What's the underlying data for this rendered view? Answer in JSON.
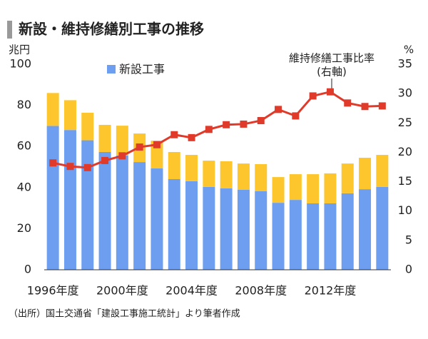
{
  "chart_data": {
    "type": "stacked-bar-line",
    "title": "新設・維持修繕別工事の推移",
    "y_label": "兆円",
    "y2_label": "%",
    "annotation": [
      "維持修繕工事比率",
      "(右軸)"
    ],
    "source": "（出所）国土交通省「建設工事施工統計」より筆者作成",
    "categories": [
      "1996年度",
      null,
      null,
      null,
      "2000年度",
      null,
      null,
      null,
      "2004年度",
      null,
      null,
      null,
      "2008年度",
      null,
      null,
      null,
      "2012年度",
      null,
      null,
      null
    ],
    "series": [
      {
        "name": "新設工事",
        "color": "#6d9ef0",
        "values": [
          70,
          68,
          63,
          57.3,
          55.6,
          52.4,
          49.3,
          44.1,
          43.1,
          40.3,
          39.6,
          38.9,
          38.2,
          32.6,
          34,
          32.3,
          32.3,
          37.2,
          39.2,
          40.3
        ]
      },
      {
        "color": "#fcc62c",
        "values": [
          16,
          14.5,
          13.4,
          13.2,
          14.5,
          13.9,
          13.5,
          13.2,
          12.8,
          12.8,
          13.2,
          12.8,
          13.2,
          12.5,
          12.5,
          14.2,
          14.6,
          14.5,
          15.3,
          15.6
        ]
      },
      {
        "color": "#e03a2a",
        "axis": "y2",
        "values": [
          18.2,
          17.6,
          17.4,
          18.6,
          19.4,
          20.9,
          21.3,
          23.0,
          22.5,
          23.9,
          24.7,
          24.8,
          25.4,
          27.3,
          26.2,
          29.6,
          30.3,
          28.4,
          27.8,
          27.9
        ]
      }
    ],
    "ylim": [
      0,
      100
    ],
    "yticks": [
      0,
      20,
      40,
      60,
      80,
      100
    ],
    "y2lim": [
      0,
      35
    ],
    "y2ticks": [
      0,
      5,
      10,
      15,
      20,
      25,
      30,
      35
    ],
    "grid": false
  }
}
